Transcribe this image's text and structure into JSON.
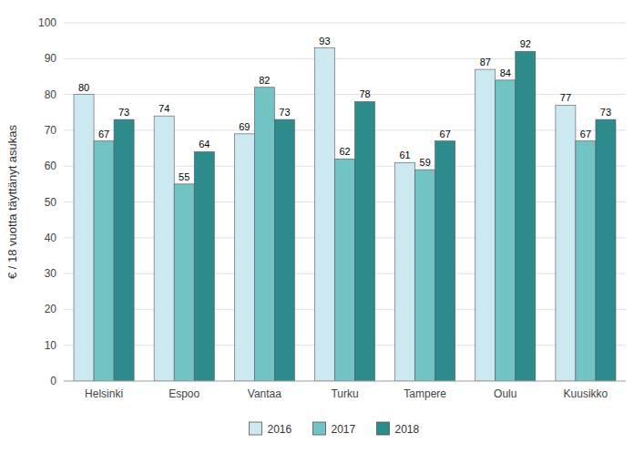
{
  "chart_data": {
    "type": "bar",
    "categories": [
      "Helsinki",
      "Espoo",
      "Vantaa",
      "Turku",
      "Tampere",
      "Oulu",
      "Kuusikko"
    ],
    "series": [
      {
        "name": "2016",
        "color": "#cce9f2",
        "values": [
          80,
          74,
          69,
          93,
          61,
          87,
          77
        ]
      },
      {
        "name": "2017",
        "color": "#72c4c4",
        "values": [
          67,
          55,
          82,
          62,
          59,
          84,
          67
        ]
      },
      {
        "name": "2018",
        "color": "#2e8b8b",
        "values": [
          73,
          64,
          73,
          78,
          67,
          92,
          73
        ]
      }
    ],
    "ylabel": "€ / 18 vuotta täyttänyt asukas",
    "ylim": [
      0,
      100
    ],
    "yticks": [
      0,
      10,
      20,
      30,
      40,
      50,
      60,
      70,
      80,
      90,
      100
    ],
    "grid": true,
    "legend": "bottom",
    "data_labels": true
  }
}
